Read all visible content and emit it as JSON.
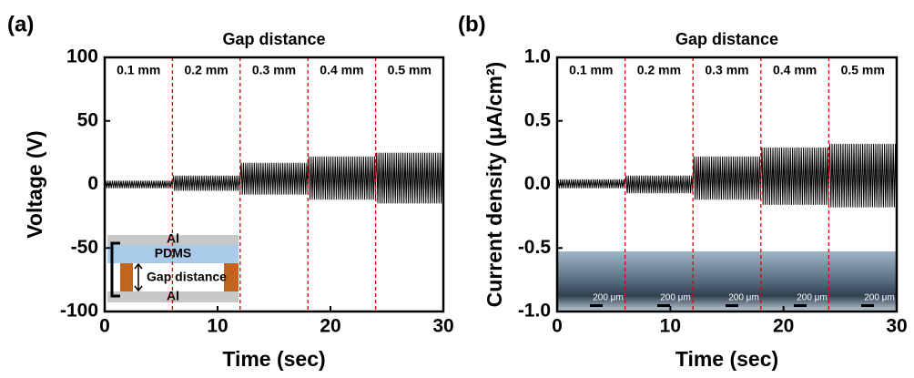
{
  "chart_data": [
    {
      "type": "line",
      "panel": "(a)",
      "title": "Gap distance",
      "x_label": "Time (sec)",
      "y_label": "Voltage (V)",
      "categories": [
        "0.1 mm",
        "0.2 mm",
        "0.3 mm",
        "0.4 mm",
        "0.5 mm"
      ],
      "upper": [
        3,
        7,
        17,
        22,
        25
      ],
      "lower": [
        -3,
        -5,
        -8,
        -12,
        -15
      ],
      "dividers": [
        6,
        12,
        18,
        24
      ],
      "color": "#000000",
      "divider_color": "#e00000",
      "xlim": [
        0,
        30
      ],
      "xticks": [
        0,
        10,
        20,
        30
      ],
      "ylim": [
        -100,
        100
      ],
      "yticks": [
        100,
        50,
        0,
        -50,
        -100
      ],
      "inset_labels": [
        "Al",
        "PDMS",
        "Gap distance",
        "Al"
      ]
    },
    {
      "type": "line",
      "panel": "(b)",
      "title": "Gap distance",
      "x_label": "Time (sec)",
      "y_label": "Current density (μA/cm²)",
      "categories": [
        "0.1 mm",
        "0.2 mm",
        "0.3 mm",
        "0.4 mm",
        "0.5 mm"
      ],
      "upper": [
        0.04,
        0.07,
        0.22,
        0.29,
        0.32
      ],
      "lower": [
        -0.03,
        -0.07,
        -0.12,
        -0.16,
        -0.18
      ],
      "dividers": [
        6,
        12,
        18,
        24
      ],
      "color": "#000000",
      "divider_color": "#e00000",
      "xlim": [
        0,
        30
      ],
      "xticks": [
        0,
        10,
        20,
        30
      ],
      "ylim": [
        -1,
        1
      ],
      "yticks": [
        {
          "value": 1,
          "label": "1.0"
        },
        0.5,
        {
          "value": 0,
          "label": "0.0"
        },
        -0.5,
        {
          "value": -1,
          "label": "-1.0"
        }
      ],
      "inset_labels": [
        "200 μm",
        "200 μm",
        "200 μm",
        "200 μm",
        "200 μm"
      ]
    }
  ]
}
